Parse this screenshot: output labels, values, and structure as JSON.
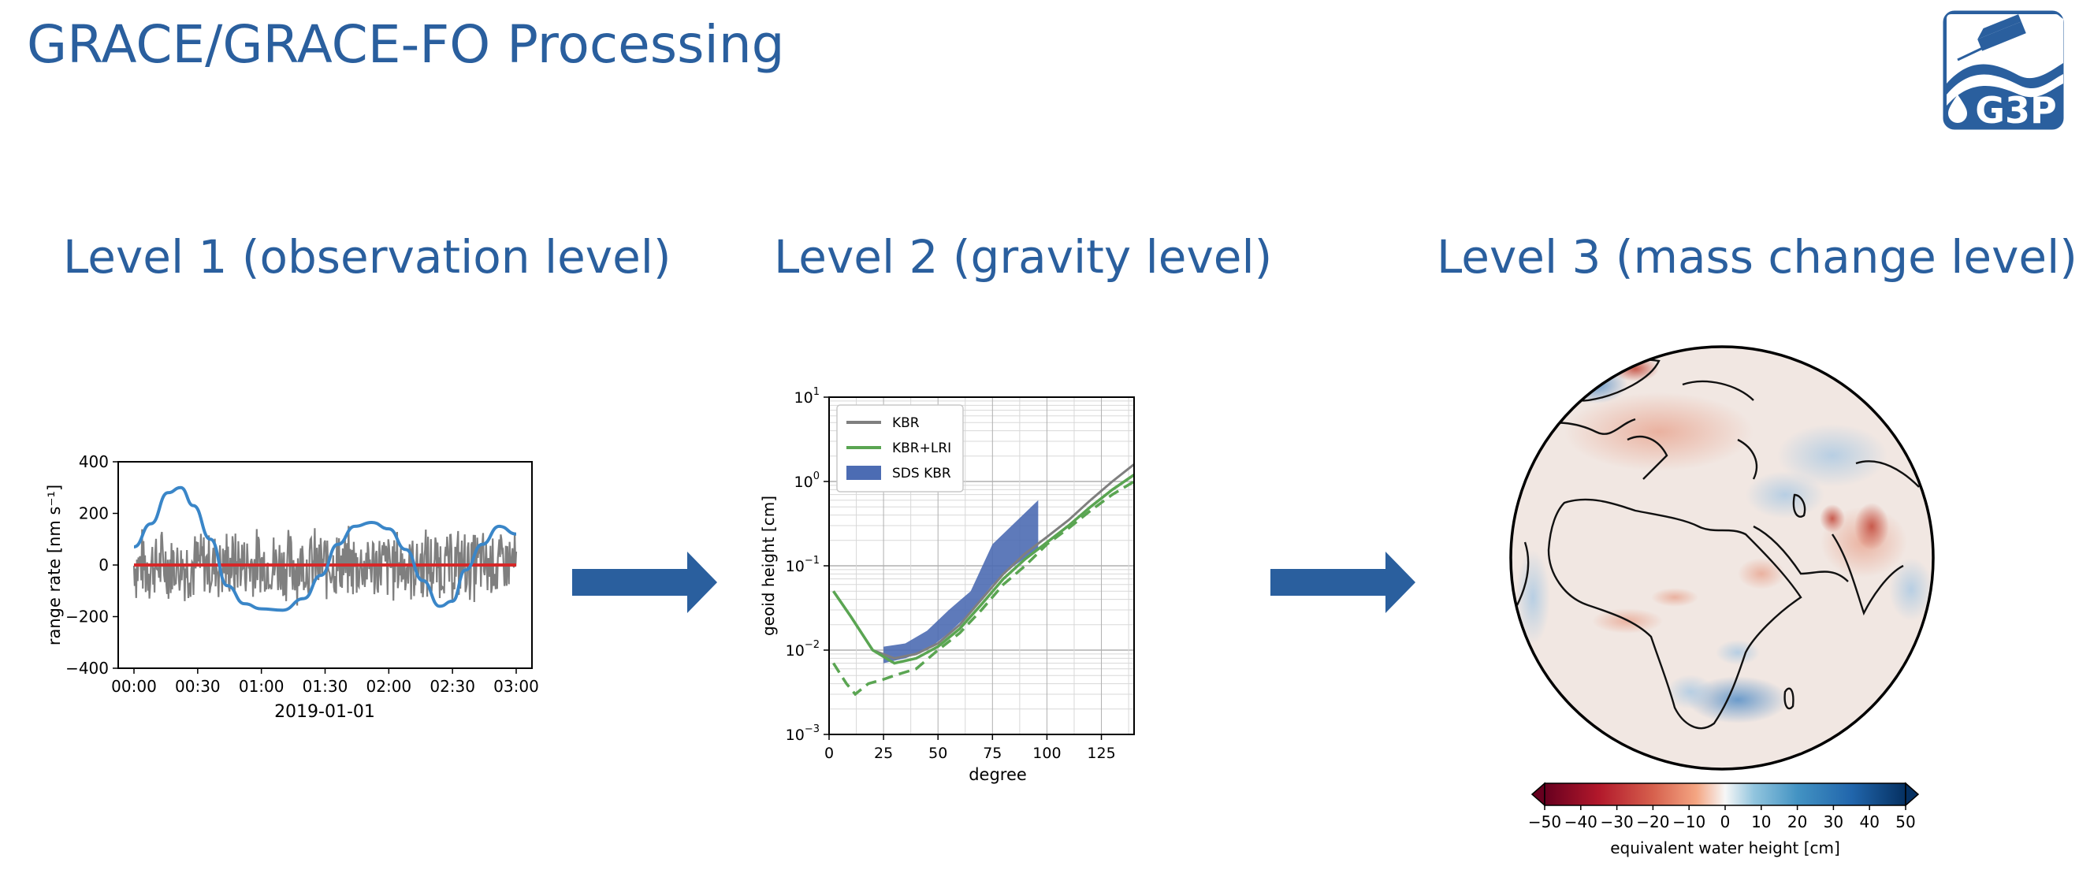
{
  "title": "GRACE/GRACE-FO Processing",
  "logo_text": "G3P",
  "levels": [
    {
      "label": "Level 1 (observation level)"
    },
    {
      "label": "Level 2 (gravity level)"
    },
    {
      "label": "Level 3 (mass change level)"
    }
  ],
  "colors": {
    "accent": "#2a5f9e",
    "arrow": "#2a5f9e",
    "gray_series": "#7f7f7f",
    "red_series": "#d62728",
    "blue_series": "#3a86c8",
    "green_series": "#5aa552",
    "sds_band": "#4c6cb3"
  },
  "chart_data": [
    {
      "type": "line",
      "xlabel": "2019-01-01",
      "ylabel": "range rate [nm s⁻¹]",
      "x_ticks": [
        "00:00",
        "00:30",
        "01:00",
        "01:30",
        "02:00",
        "02:30",
        "03:00"
      ],
      "y_ticks": [
        "400",
        "200",
        "0",
        "−200",
        "−400"
      ],
      "ylim": [
        -400,
        400
      ],
      "x_range_minutes": [
        0,
        180
      ],
      "series": [
        {
          "color": "#7f7f7f",
          "style": "noise",
          "amplitude": 160
        },
        {
          "color": "#d62728",
          "values_constant": 0
        },
        {
          "color": "#3a86c8",
          "points": [
            [
              0,
              70
            ],
            [
              8,
              160
            ],
            [
              16,
              280
            ],
            [
              22,
              300
            ],
            [
              28,
              230
            ],
            [
              36,
              100
            ],
            [
              44,
              -80
            ],
            [
              52,
              -150
            ],
            [
              60,
              -170
            ],
            [
              70,
              -175
            ],
            [
              80,
              -130
            ],
            [
              88,
              -40
            ],
            [
              96,
              80
            ],
            [
              104,
              150
            ],
            [
              112,
              165
            ],
            [
              120,
              140
            ],
            [
              128,
              60
            ],
            [
              136,
              -60
            ],
            [
              144,
              -160
            ],
            [
              150,
              -140
            ],
            [
              156,
              -20
            ],
            [
              164,
              80
            ],
            [
              172,
              150
            ],
            [
              180,
              120
            ]
          ]
        }
      ]
    },
    {
      "type": "line",
      "xlabel": "degree",
      "ylabel": "geoid height [cm]",
      "yscale": "log",
      "xlim": [
        0,
        140
      ],
      "ylim": [
        0.001,
        10
      ],
      "x_ticks": [
        "0",
        "25",
        "50",
        "75",
        "100",
        "125"
      ],
      "y_tick_exponents": [
        "1",
        "0",
        "−1",
        "−2",
        "−3"
      ],
      "legend": [
        "KBR",
        "KBR+LRI",
        "SDS KBR"
      ],
      "legend_placement": "top-left",
      "grid": true,
      "series": [
        {
          "name": "KBR",
          "color": "#7f7f7f",
          "points": [
            [
              2,
              0.05
            ],
            [
              10,
              0.025
            ],
            [
              20,
              0.01
            ],
            [
              30,
              0.008
            ],
            [
              40,
              0.009
            ],
            [
              50,
              0.012
            ],
            [
              60,
              0.02
            ],
            [
              70,
              0.04
            ],
            [
              80,
              0.08
            ],
            [
              90,
              0.14
            ],
            [
              100,
              0.22
            ],
            [
              110,
              0.35
            ],
            [
              120,
              0.6
            ],
            [
              130,
              1.0
            ],
            [
              140,
              1.6
            ]
          ]
        },
        {
          "name": "KBR+LRI",
          "color": "#5aa552",
          "points": [
            [
              2,
              0.05
            ],
            [
              10,
              0.025
            ],
            [
              20,
              0.01
            ],
            [
              30,
              0.007
            ],
            [
              40,
              0.008
            ],
            [
              50,
              0.011
            ],
            [
              60,
              0.018
            ],
            [
              70,
              0.035
            ],
            [
              80,
              0.07
            ],
            [
              90,
              0.12
            ],
            [
              100,
              0.19
            ],
            [
              110,
              0.3
            ],
            [
              120,
              0.5
            ],
            [
              130,
              0.8
            ],
            [
              140,
              1.2
            ]
          ]
        },
        {
          "name": "KBR+LRI",
          "color": "#5aa552",
          "style": "dashed",
          "points": [
            [
              2,
              0.007
            ],
            [
              8,
              0.004
            ],
            [
              12,
              0.003
            ],
            [
              18,
              0.004
            ],
            [
              25,
              0.0045
            ],
            [
              30,
              0.005
            ],
            [
              40,
              0.006
            ],
            [
              50,
              0.01
            ],
            [
              60,
              0.016
            ],
            [
              70,
              0.03
            ],
            [
              80,
              0.06
            ],
            [
              90,
              0.1
            ],
            [
              100,
              0.18
            ],
            [
              110,
              0.28
            ],
            [
              120,
              0.45
            ],
            [
              130,
              0.7
            ],
            [
              140,
              1.0
            ]
          ]
        },
        {
          "name": "SDS KBR",
          "color": "#4c6cb3",
          "style": "band",
          "low": [
            [
              25,
              0.007
            ],
            [
              35,
              0.008
            ],
            [
              45,
              0.01
            ],
            [
              55,
              0.016
            ],
            [
              65,
              0.028
            ],
            [
              75,
              0.06
            ],
            [
              85,
              0.1
            ],
            [
              96,
              0.16
            ]
          ],
          "high": [
            [
              25,
              0.011
            ],
            [
              35,
              0.012
            ],
            [
              45,
              0.017
            ],
            [
              55,
              0.03
            ],
            [
              65,
              0.05
            ],
            [
              75,
              0.18
            ],
            [
              85,
              0.32
            ],
            [
              96,
              0.6
            ]
          ]
        }
      ]
    },
    {
      "type": "heatmap",
      "projection": "orthographic",
      "colorbar_label": "equivalent water height [cm]",
      "colorbar_ticks": [
        "−50",
        "−40",
        "−30",
        "−20",
        "−10",
        "0",
        "10",
        "20",
        "30",
        "40",
        "50"
      ],
      "clim": [
        -50,
        50
      ],
      "colormap": "RdBu"
    }
  ]
}
